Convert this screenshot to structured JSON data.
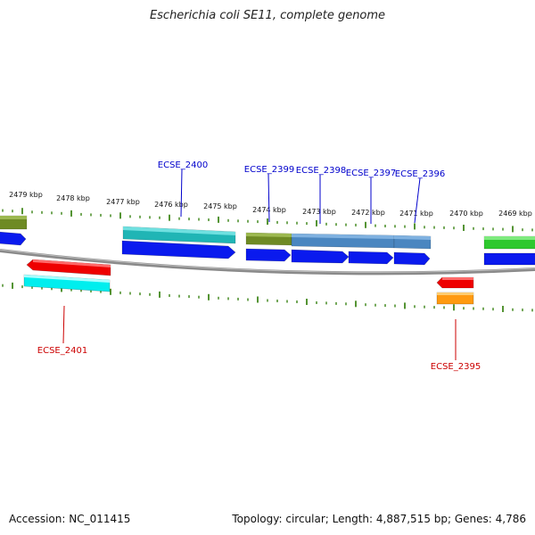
{
  "title": "Escherichia coli SE11, complete genome",
  "footer": {
    "accession": "Accession: NC_011415",
    "summary": "Topology: circular; Length: 4,887,515 bp; Genes: 4,786"
  },
  "ruler": {
    "labels": [
      "2479 kbp",
      "2478 kbp",
      "2477 kbp",
      "2476 kbp",
      "2475 kbp",
      "2474 kbp",
      "2473 kbp",
      "2472 kbp",
      "2471 kbp",
      "2470 kbp",
      "2469 kbp"
    ]
  },
  "genes": {
    "forward_labels": [
      "ECSE_2400",
      "ECSE_2399",
      "ECSE_2398",
      "ECSE_2397",
      "ECSE_2396"
    ],
    "reverse_labels": [
      "ECSE_2401",
      "ECSE_2395"
    ]
  },
  "colors": {
    "forward_label": "#0000cc",
    "reverse_label": "#cc0000",
    "tick": "#2a7a00",
    "backbone": "#808080",
    "blue": "#0a1aee",
    "red": "#ee0000",
    "cyan": "#00eeee",
    "teal": "#20b5b5",
    "olive": "#6e8a24",
    "steelblue": "#4a86c0",
    "green": "#2ec82e",
    "orange": "#ff9a10"
  }
}
